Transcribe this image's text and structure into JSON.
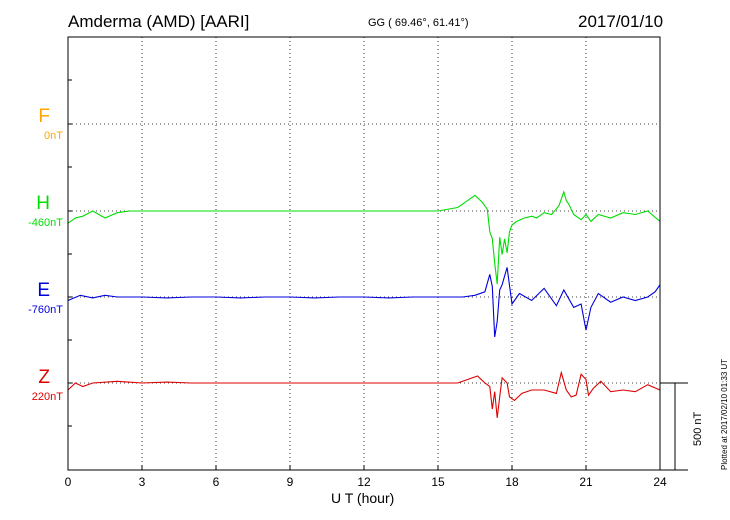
{
  "header": {
    "station": "Amderma (AMD)  [AARI]",
    "coords": "GG ( 69.46°,  61.41°)",
    "date": "2017/01/10"
  },
  "colors": {
    "F": "#ffa500",
    "H": "#00dd00",
    "E": "#0000dd",
    "Z": "#dd0000"
  },
  "components": [
    {
      "letter": "F",
      "baseline": "0nT"
    },
    {
      "letter": "H",
      "baseline": "-460nT"
    },
    {
      "letter": "E",
      "baseline": "-760nT"
    },
    {
      "letter": "Z",
      "baseline": "220nT"
    }
  ],
  "scale_bar_label": "500 nT",
  "plotted_note": "Plotted at 2017/02/10 01:33 UT",
  "chart_data": {
    "type": "line",
    "title": "Amderma (AMD)  [AARI]",
    "xlabel": "U T (hour)",
    "xlim": [
      0,
      24
    ],
    "xticks": [
      "0",
      "3",
      "6",
      "9",
      "12",
      "15",
      "18",
      "21",
      "24"
    ],
    "scale_bar_nT": 500,
    "grid": true,
    "series": [
      {
        "name": "F",
        "baseline_nT": 0,
        "x": [],
        "values": []
      },
      {
        "name": "H",
        "baseline_nT": -460,
        "x": [
          0,
          0.3,
          0.6,
          1.0,
          1.5,
          2.0,
          2.5,
          3.0,
          4.0,
          5.0,
          6.0,
          7.0,
          8.0,
          9.0,
          10.0,
          11.0,
          12.0,
          13.0,
          14.0,
          15.0,
          15.8,
          16.2,
          16.5,
          16.8,
          17.0,
          17.1,
          17.2,
          17.3,
          17.4,
          17.5,
          17.6,
          17.7,
          17.8,
          17.9,
          18.0,
          18.2,
          18.5,
          18.8,
          19.0,
          19.3,
          19.6,
          19.9,
          20.1,
          20.2,
          20.3,
          20.5,
          20.8,
          21.0,
          21.2,
          21.5,
          22.0,
          22.5,
          23.0,
          23.5,
          24.0
        ],
        "values": [
          -70,
          -40,
          -30,
          0,
          -40,
          -10,
          0,
          0,
          0,
          0,
          0,
          0,
          0,
          0,
          0,
          0,
          0,
          0,
          0,
          0,
          20,
          60,
          90,
          50,
          10,
          -120,
          -160,
          -300,
          -420,
          -150,
          -250,
          -160,
          -240,
          -120,
          -80,
          -60,
          -40,
          -30,
          -40,
          -10,
          -20,
          30,
          110,
          60,
          40,
          -20,
          -50,
          -20,
          -60,
          -20,
          -40,
          -10,
          -20,
          0,
          -60
        ]
      },
      {
        "name": "E",
        "baseline_nT": -760,
        "x": [
          0,
          0.5,
          1.0,
          1.5,
          2.0,
          3.0,
          4.0,
          5.0,
          6.0,
          7.0,
          8.0,
          9.0,
          10.0,
          11.0,
          12.0,
          13.0,
          14.0,
          15.0,
          16.0,
          16.5,
          16.9,
          17.1,
          17.2,
          17.3,
          17.4,
          17.5,
          17.6,
          17.8,
          18.0,
          18.3,
          18.8,
          19.3,
          19.8,
          20.1,
          20.5,
          20.8,
          21.0,
          21.2,
          21.5,
          22.0,
          22.5,
          23.0,
          23.5,
          23.8,
          24.0
        ],
        "values": [
          -20,
          10,
          -5,
          10,
          0,
          0,
          -5,
          0,
          0,
          -5,
          0,
          0,
          -5,
          0,
          0,
          -5,
          0,
          0,
          0,
          10,
          30,
          130,
          60,
          -230,
          -140,
          40,
          70,
          170,
          -40,
          20,
          -20,
          50,
          -50,
          40,
          -60,
          -40,
          -190,
          -60,
          20,
          -30,
          0,
          -20,
          0,
          30,
          70
        ]
      },
      {
        "name": "Z",
        "baseline_nT": 220,
        "x": [
          0,
          0.3,
          0.6,
          1.0,
          2.0,
          3.0,
          4.0,
          5.0,
          6.0,
          7.0,
          8.0,
          9.0,
          10.0,
          11.0,
          12.0,
          13.0,
          14.0,
          15.0,
          15.8,
          16.2,
          16.6,
          16.9,
          17.1,
          17.2,
          17.3,
          17.4,
          17.5,
          17.6,
          17.8,
          17.9,
          18.1,
          18.4,
          18.8,
          19.3,
          19.8,
          20.0,
          20.2,
          20.4,
          20.6,
          20.8,
          21.0,
          21.1,
          21.3,
          21.6,
          22.0,
          22.5,
          23.0,
          23.5,
          24.0
        ],
        "values": [
          -40,
          0,
          -20,
          0,
          10,
          0,
          5,
          0,
          0,
          0,
          0,
          0,
          0,
          0,
          0,
          0,
          0,
          0,
          0,
          20,
          40,
          0,
          -20,
          -150,
          -50,
          -200,
          -80,
          30,
          0,
          -80,
          -100,
          -60,
          -40,
          -40,
          -60,
          60,
          -40,
          -80,
          -70,
          50,
          20,
          -70,
          -30,
          10,
          -50,
          -40,
          -50,
          -10,
          -40
        ]
      }
    ]
  }
}
